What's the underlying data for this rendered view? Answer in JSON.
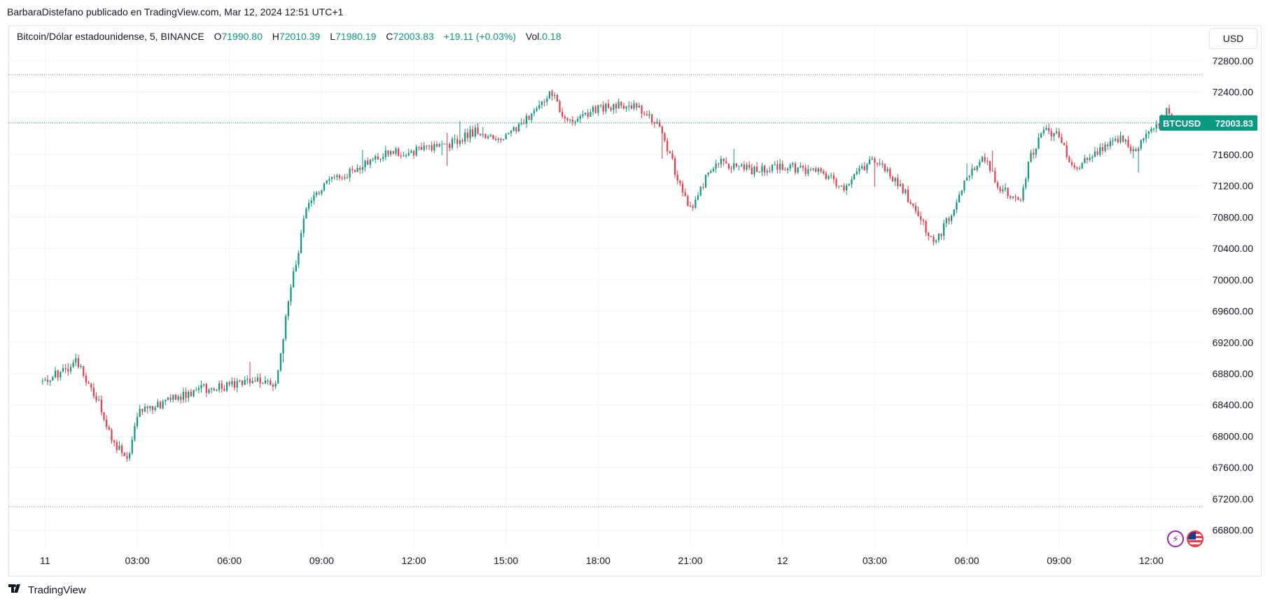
{
  "header": {
    "publisher_line": "BarbaraDistefano publicado en TradingView.com, Mar 12, 2024 12:51 UTC+1"
  },
  "legend": {
    "symbol": "Bitcoin/Dólar estadounidense, 5, BINANCE",
    "o_label": "O",
    "o_value": "71990.80",
    "h_label": "H",
    "h_value": "72010.39",
    "l_label": "L",
    "l_value": "71980.19",
    "c_label": "C",
    "c_value": "72003.83",
    "change": "+19.11 (+0.03%)",
    "vol_label": "Vol.",
    "vol_value": "0.18"
  },
  "toolbar": {
    "currency_label": "USD"
  },
  "price_tag": {
    "ticker": "BTCUSD",
    "value": "72003.83"
  },
  "footer": {
    "brand": "TradingView"
  },
  "colors": {
    "up": "#089981",
    "down": "#f23645",
    "grid": "#f0f3fa",
    "text": "#131722",
    "accent": "#089981"
  },
  "icons": [
    "lightning-icon",
    "us-flag-icon",
    "tradingview-logo-icon"
  ],
  "chart_data": {
    "type": "candlestick",
    "title": "Bitcoin/Dólar estadounidense, 5, BINANCE",
    "x_tick_labels": [
      "11",
      "03:00",
      "06:00",
      "09:00",
      "12:00",
      "15:00",
      "18:00",
      "21:00",
      "12",
      "03:00",
      "06:00",
      "09:00",
      "12:00"
    ],
    "y_tick_labels": [
      "72800.00",
      "72400.00",
      "72000.00",
      "71600.00",
      "71200.00",
      "70800.00",
      "70400.00",
      "70000.00",
      "69600.00",
      "69200.00",
      "68800.00",
      "68400.00",
      "68000.00",
      "67600.00",
      "67200.00",
      "66800.00"
    ],
    "y_range": [
      66600,
      72950
    ],
    "reference_lines": [
      72620,
      72003.83,
      67100
    ],
    "last_price": 72003.83,
    "grid": true,
    "approx_close_path": [
      {
        "time": "Mar 11 00:00",
        "price": 68700
      },
      {
        "time": "Mar 11 01:00",
        "price": 68950
      },
      {
        "time": "Mar 11 01:45",
        "price": 68450
      },
      {
        "time": "Mar 11 02:15",
        "price": 67900
      },
      {
        "time": "Mar 11 02:45",
        "price": 67750
      },
      {
        "time": "Mar 11 03:00",
        "price": 68300
      },
      {
        "time": "Mar 11 04:00",
        "price": 68450
      },
      {
        "time": "Mar 11 05:00",
        "price": 68600
      },
      {
        "time": "Mar 11 06:00",
        "price": 68650
      },
      {
        "time": "Mar 11 07:00",
        "price": 68700
      },
      {
        "time": "Mar 11 07:30",
        "price": 68650
      },
      {
        "time": "Mar 11 08:00",
        "price": 69900
      },
      {
        "time": "Mar 11 08:30",
        "price": 70900
      },
      {
        "time": "Mar 11 09:00",
        "price": 71200
      },
      {
        "time": "Mar 11 10:00",
        "price": 71400
      },
      {
        "time": "Mar 11 11:00",
        "price": 71600
      },
      {
        "time": "Mar 11 12:00",
        "price": 71650
      },
      {
        "time": "Mar 11 13:00",
        "price": 71700
      },
      {
        "time": "Mar 11 14:00",
        "price": 71900
      },
      {
        "time": "Mar 11 15:00",
        "price": 71800
      },
      {
        "time": "Mar 11 16:00",
        "price": 72200
      },
      {
        "time": "Mar 11 16:30",
        "price": 72400
      },
      {
        "time": "Mar 11 17:00",
        "price": 72000
      },
      {
        "time": "Mar 11 18:00",
        "price": 72200
      },
      {
        "time": "Mar 11 19:00",
        "price": 72250
      },
      {
        "time": "Mar 11 20:00",
        "price": 72000
      },
      {
        "time": "Mar 11 20:45",
        "price": 71100
      },
      {
        "time": "Mar 11 21:00",
        "price": 70900
      },
      {
        "time": "Mar 11 21:30",
        "price": 71300
      },
      {
        "time": "Mar 11 22:00",
        "price": 71500
      },
      {
        "time": "Mar 11 23:00",
        "price": 71400
      },
      {
        "time": "Mar 12 00:00",
        "price": 71450
      },
      {
        "time": "Mar 12 01:00",
        "price": 71400
      },
      {
        "time": "Mar 12 02:00",
        "price": 71200
      },
      {
        "time": "Mar 12 03:00",
        "price": 71550
      },
      {
        "time": "Mar 12 04:00",
        "price": 71100
      },
      {
        "time": "Mar 12 04:45",
        "price": 70600
      },
      {
        "time": "Mar 12 05:00",
        "price": 70500
      },
      {
        "time": "Mar 12 05:30",
        "price": 70850
      },
      {
        "time": "Mar 12 06:00",
        "price": 71300
      },
      {
        "time": "Mar 12 06:30",
        "price": 71600
      },
      {
        "time": "Mar 12 07:00",
        "price": 71200
      },
      {
        "time": "Mar 12 07:45",
        "price": 71000
      },
      {
        "time": "Mar 12 08:00",
        "price": 71500
      },
      {
        "time": "Mar 12 08:30",
        "price": 71900
      },
      {
        "time": "Mar 12 09:00",
        "price": 71850
      },
      {
        "time": "Mar 12 09:30",
        "price": 71400
      },
      {
        "time": "Mar 12 10:00",
        "price": 71600
      },
      {
        "time": "Mar 12 11:00",
        "price": 71800
      },
      {
        "time": "Mar 12 11:30",
        "price": 71650
      },
      {
        "time": "Mar 12 12:00",
        "price": 71900
      },
      {
        "time": "Mar 12 12:30",
        "price": 72150
      },
      {
        "time": "Mar 12 12:45",
        "price": 72003.83
      }
    ]
  }
}
